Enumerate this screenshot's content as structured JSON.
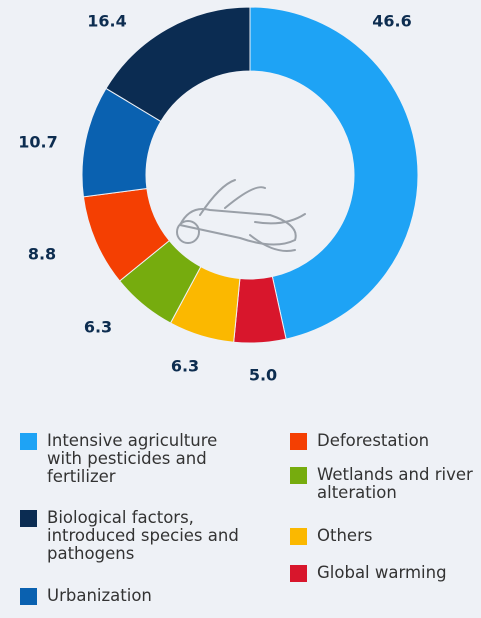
{
  "chart_data": {
    "type": "donut",
    "categories": [
      "Intensive agriculture with pesticides and fertilizer",
      "Global warming",
      "Others",
      "Wetlands and river alteration",
      "Deforestation",
      "Urbanization",
      "Biological factors, introduced species and pathogens"
    ],
    "values": [
      46.6,
      5.0,
      6.3,
      6.3,
      8.8,
      10.7,
      16.4
    ],
    "value_labels": [
      "46.6",
      "5.0",
      "6.3",
      "6.3",
      "8.8",
      "10.7",
      "16.4"
    ],
    "colors": [
      "#1ea3f5",
      "#d8162c",
      "#fbb800",
      "#76ac0e",
      "#f43f02",
      "#0a61b0",
      "#0b2c52"
    ]
  }
}
